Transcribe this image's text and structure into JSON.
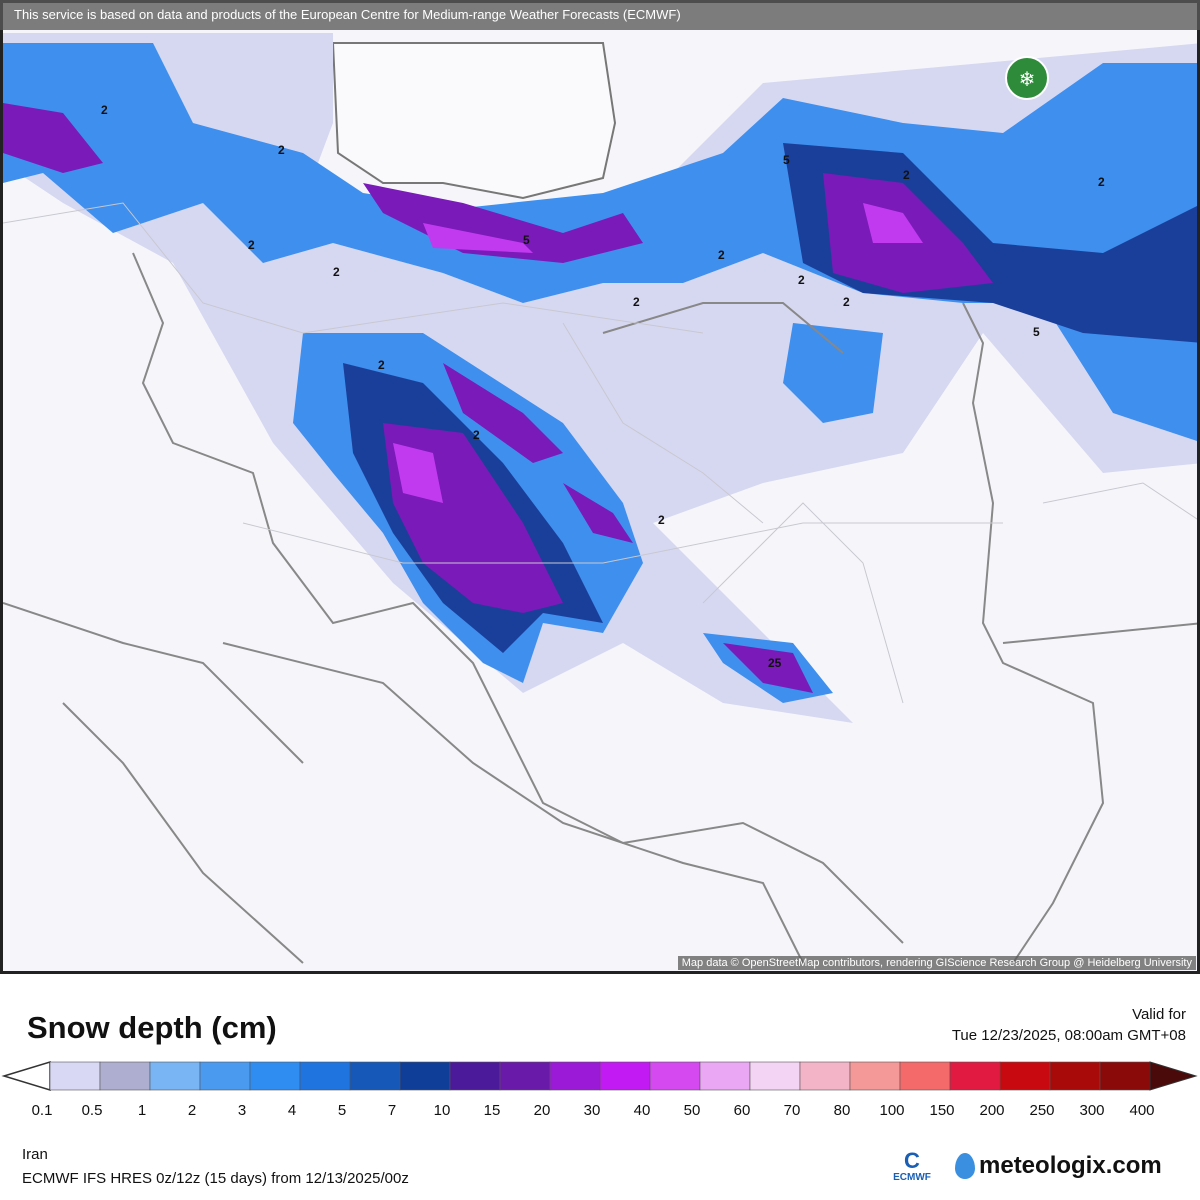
{
  "attribution_top": "This service is based on data and products of the European Centre for Medium-range Weather Forecasts (ECMWF)",
  "attribution_map": "Map data © OpenStreetMap contributors, rendering GIScience Research Group @ Heidelberg University",
  "map_labels": [
    "2",
    "2",
    "2",
    "2",
    "5",
    "2",
    "2",
    "5",
    "2",
    "2",
    "2",
    "5",
    "2",
    "2",
    "2",
    "25",
    "2"
  ],
  "legend": {
    "title": "Snow depth (cm)",
    "valid_label": "Valid for",
    "valid_time": "Tue 12/23/2025, 08:00am GMT+08",
    "ticks": [
      "0.1",
      "0.5",
      "1",
      "2",
      "3",
      "4",
      "5",
      "7",
      "10",
      "15",
      "20",
      "30",
      "40",
      "50",
      "60",
      "70",
      "80",
      "100",
      "150",
      "200",
      "250",
      "300",
      "400"
    ],
    "colors": [
      "#d8d8f4",
      "#aeaed0",
      "#79b4f4",
      "#4a9af0",
      "#2f8cf0",
      "#1f74e0",
      "#1558b8",
      "#0f3e98",
      "#4a1a9a",
      "#6a1aa8",
      "#9a1ad8",
      "#c21af2",
      "#d44af0",
      "#eaa8f4",
      "#f4d4f4",
      "#f4b4c8",
      "#f49898",
      "#f46a6a",
      "#e01a40",
      "#c80a10",
      "#a80a0a",
      "#8a0a0a",
      "#4a0a0a"
    ]
  },
  "footer": {
    "region": "Iran",
    "model": "ECMWF IFS HRES 0z/12z (15 days) from  12/13/2025/00z",
    "ecmwf_logo": "ECMWF",
    "brand": "meteologix.com"
  }
}
